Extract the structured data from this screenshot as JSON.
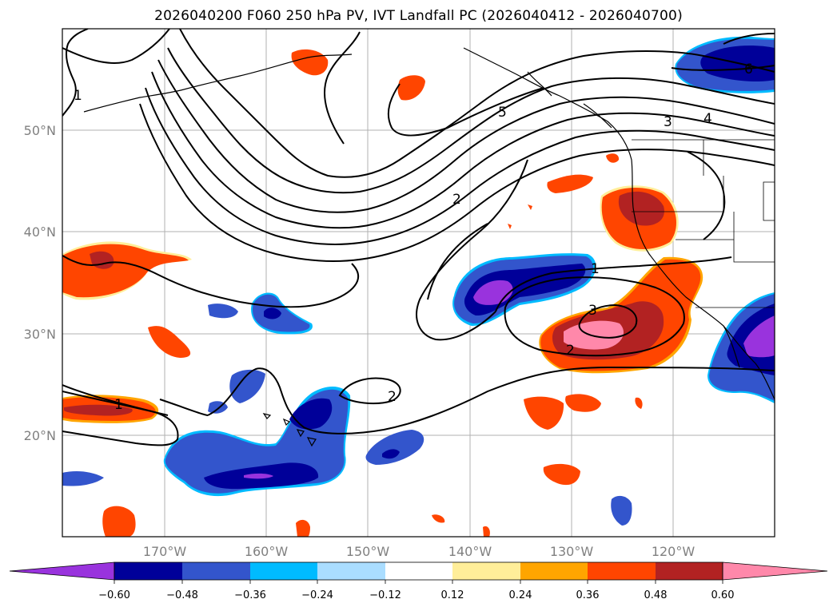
{
  "title": "2026040200 F060 250 hPa PV, IVT Landfall PC (2026040412 - 2026040700)",
  "map": {
    "lat_labels": [
      "50°N",
      "40°N",
      "30°N",
      "20°N"
    ],
    "lon_labels": [
      "170°W",
      "160°W",
      "150°W",
      "140°W",
      "130°W",
      "120°W"
    ],
    "contour_labels": [
      "1",
      "5",
      "3",
      "4",
      "6",
      "2",
      "1",
      "3",
      "2",
      "2",
      "1"
    ]
  },
  "colorbar": {
    "tick_labels": [
      "−0.60",
      "−0.48",
      "−0.36",
      "−0.24",
      "−0.12",
      "0.12",
      "0.24",
      "0.36",
      "0.48",
      "0.60"
    ],
    "colors": [
      "#9933dd",
      "#000099",
      "#3355cc",
      "#00bbff",
      "#aaddff",
      "#ffffff",
      "#ffee99",
      "#ffa500",
      "#ff4500",
      "#b22222",
      "#ff88aa"
    ]
  }
}
